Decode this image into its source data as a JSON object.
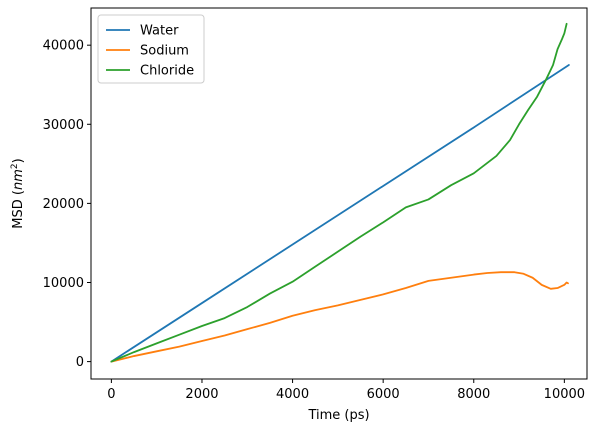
{
  "chart_data": {
    "type": "line",
    "title": "",
    "xlabel": "Time (ps)",
    "ylabel": {
      "base": "MSD (",
      "math": "nm",
      "sup": "2",
      "close": ")"
    },
    "xlim": [
      -450,
      10500
    ],
    "ylim": [
      -2200,
      44700
    ],
    "xticks": [
      0,
      2000,
      4000,
      6000,
      8000,
      10000
    ],
    "yticks": [
      0,
      10000,
      20000,
      30000,
      40000
    ],
    "xtick_labels": [
      "0",
      "2000",
      "4000",
      "6000",
      "8000",
      "10000"
    ],
    "ytick_labels": [
      "0",
      "10000",
      "20000",
      "30000",
      "40000"
    ],
    "grid": false,
    "legend": {
      "placement": "top-left"
    },
    "series": [
      {
        "name": "Water",
        "color": "#1f77b4",
        "points": [
          [
            0,
            0
          ],
          [
            2000,
            7400
          ],
          [
            4000,
            14800
          ],
          [
            6000,
            22200
          ],
          [
            8000,
            29600
          ],
          [
            10100,
            37500
          ]
        ]
      },
      {
        "name": "Sodium",
        "color": "#ff7f0e",
        "points": [
          [
            0,
            0
          ],
          [
            500,
            700
          ],
          [
            1000,
            1300
          ],
          [
            1500,
            1900
          ],
          [
            2000,
            2600
          ],
          [
            2500,
            3300
          ],
          [
            3000,
            4100
          ],
          [
            3500,
            4900
          ],
          [
            4000,
            5800
          ],
          [
            4500,
            6500
          ],
          [
            5000,
            7100
          ],
          [
            5500,
            7800
          ],
          [
            6000,
            8500
          ],
          [
            6500,
            9300
          ],
          [
            7000,
            10200
          ],
          [
            7500,
            10600
          ],
          [
            8000,
            11000
          ],
          [
            8300,
            11200
          ],
          [
            8600,
            11300
          ],
          [
            8900,
            11300
          ],
          [
            9100,
            11100
          ],
          [
            9300,
            10600
          ],
          [
            9500,
            9700
          ],
          [
            9700,
            9200
          ],
          [
            9850,
            9300
          ],
          [
            10000,
            9700
          ],
          [
            10050,
            10000
          ],
          [
            10080,
            9900
          ]
        ]
      },
      {
        "name": "Chloride",
        "color": "#2ca02c",
        "points": [
          [
            0,
            0
          ],
          [
            500,
            1200
          ],
          [
            1000,
            2300
          ],
          [
            1500,
            3400
          ],
          [
            2000,
            4500
          ],
          [
            2500,
            5500
          ],
          [
            3000,
            6900
          ],
          [
            3500,
            8600
          ],
          [
            4000,
            10100
          ],
          [
            4500,
            12000
          ],
          [
            5000,
            13900
          ],
          [
            5500,
            15800
          ],
          [
            6000,
            17600
          ],
          [
            6500,
            19500
          ],
          [
            7000,
            20500
          ],
          [
            7500,
            22300
          ],
          [
            8000,
            23800
          ],
          [
            8500,
            26000
          ],
          [
            8800,
            28000
          ],
          [
            9000,
            30000
          ],
          [
            9200,
            31800
          ],
          [
            9400,
            33500
          ],
          [
            9600,
            35700
          ],
          [
            9750,
            37500
          ],
          [
            9850,
            39500
          ],
          [
            9950,
            40800
          ],
          [
            10000,
            41500
          ],
          [
            10050,
            42700
          ]
        ]
      }
    ]
  }
}
